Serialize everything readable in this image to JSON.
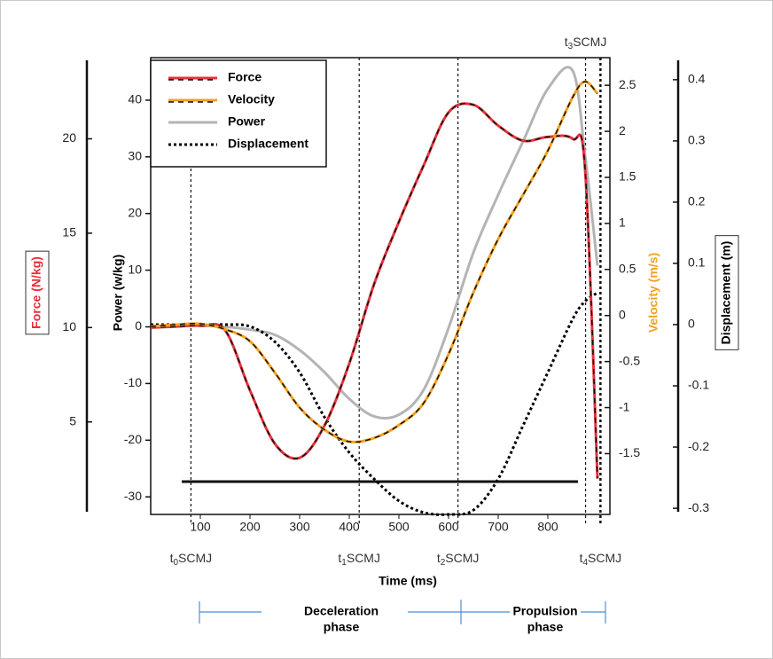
{
  "chart_data": {
    "type": "line",
    "xlabel": "Time (ms)",
    "x": [
      0,
      50,
      100,
      150,
      200,
      250,
      300,
      350,
      400,
      450,
      500,
      550,
      600,
      650,
      700,
      750,
      800,
      850,
      875,
      900
    ],
    "xlim": [
      0,
      925
    ],
    "xticks": [
      100,
      200,
      300,
      400,
      500,
      600,
      700,
      800
    ],
    "axes": [
      {
        "label": "Force (N/kg)",
        "color": "#e8303a",
        "lim": [
          0.1,
          24.3
        ],
        "ticks": [
          5,
          10,
          15,
          20
        ]
      },
      {
        "label": "Power (w/kg)",
        "color": "#000000",
        "lim": [
          -33.1,
          47.5
        ],
        "ticks": [
          -30,
          -20,
          -10,
          0,
          10,
          20,
          30,
          40
        ]
      },
      {
        "label": "Velocity (m/s)",
        "color": "#f5a020",
        "lim": [
          -2.16,
          2.8
        ],
        "ticks": [
          -1.5,
          -1,
          -0.5,
          0,
          0.5,
          1,
          1.5,
          2,
          2.5
        ]
      },
      {
        "label": "Displacement (m)",
        "color": "#000000",
        "lim": [
          -0.31,
          0.436
        ],
        "ticks": [
          -0.3,
          -0.2,
          -0.1,
          0,
          0.1,
          0.2,
          0.3,
          0.4
        ]
      }
    ],
    "series": [
      {
        "name": "Force",
        "color": "#e8303a",
        "axis": 0,
        "style": "solid-dashed",
        "values": [
          10.0,
          10.05,
          10.1,
          9.85,
          6.67,
          3.85,
          3.1,
          4.8,
          8.1,
          12.3,
          15.6,
          18.6,
          21.4,
          21.8,
          20.7,
          19.9,
          20.1,
          20.0,
          18.4,
          2.0
        ]
      },
      {
        "name": "Velocity",
        "color": "#f5a020",
        "axis": 2,
        "style": "solid-dashed",
        "values": [
          -0.12,
          -0.1,
          -0.09,
          -0.15,
          -0.28,
          -0.62,
          -1.0,
          -1.24,
          -1.37,
          -1.33,
          -1.19,
          -0.95,
          -0.42,
          0.25,
          0.83,
          1.31,
          1.79,
          2.37,
          2.54,
          2.41
        ]
      },
      {
        "name": "Power",
        "color": "#b4b4b4",
        "axis": 1,
        "style": "solid",
        "values": [
          0.2,
          0.2,
          0.2,
          0,
          -0.5,
          -1.4,
          -4.1,
          -8,
          -12.7,
          -15.8,
          -15.5,
          -11.1,
          -0.2,
          13.1,
          23.3,
          32.7,
          42,
          45.2,
          30.3,
          10.8
        ]
      },
      {
        "name": "Displacement",
        "color": "#000000",
        "axis": 3,
        "style": "dotted",
        "values": [
          0,
          0,
          0,
          0,
          -0.003,
          -0.028,
          -0.078,
          -0.151,
          -0.209,
          -0.252,
          -0.288,
          -0.307,
          -0.31,
          -0.303,
          -0.252,
          -0.165,
          -0.078,
          0.009,
          0.038,
          0.052
        ]
      }
    ],
    "events": [
      {
        "time": 81,
        "prefix": "t",
        "sub": "0",
        "rest": "SCMJ"
      },
      {
        "time": 420,
        "prefix": "t",
        "sub": "1",
        "rest": "SCMJ"
      },
      {
        "time": 619,
        "prefix": "t",
        "sub": "2",
        "rest": "SCMJ"
      },
      {
        "time": 876,
        "prefix": "t",
        "sub": "3",
        "rest": "SCMJ"
      },
      {
        "time": 906,
        "prefix": "t",
        "sub": "4",
        "rest": "SCMJ"
      }
    ],
    "phases": [
      {
        "lines": [
          "Deceleration",
          "phase"
        ]
      },
      {
        "lines": [
          "Propulsion",
          "phase"
        ]
      }
    ]
  }
}
